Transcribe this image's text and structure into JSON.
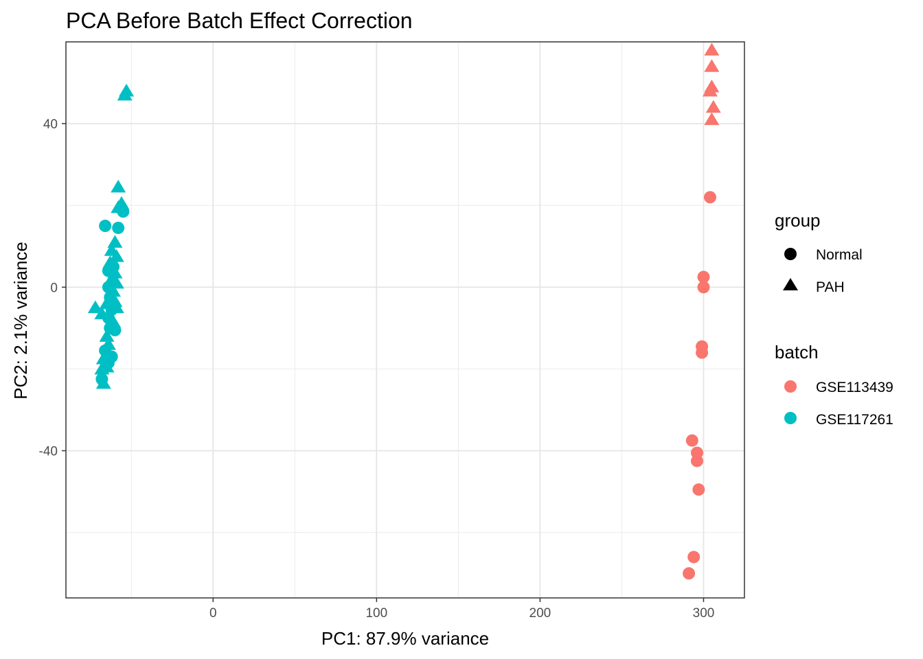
{
  "chart_data": {
    "type": "scatter",
    "title": "PCA Before Batch Effect Correction",
    "xlabel": "PC1: 87.9% variance",
    "ylabel": "PC2: 2.1% variance",
    "xlim": [
      -90,
      325
    ],
    "ylim": [
      -76,
      60
    ],
    "x_ticks": [
      0,
      100,
      200,
      300
    ],
    "y_ticks": [
      -40,
      0,
      40
    ],
    "x_tick_labels": [
      "0",
      "100",
      "200",
      "300"
    ],
    "y_tick_labels": [
      "-40",
      "0",
      "40"
    ],
    "grid": true,
    "legend_position": "right",
    "legends": [
      {
        "title": "group",
        "entries": [
          {
            "label": "Normal",
            "shape": "circle"
          },
          {
            "label": "PAH",
            "shape": "triangle"
          }
        ]
      },
      {
        "title": "batch",
        "entries": [
          {
            "label": "GSE113439",
            "color": "#F8766D"
          },
          {
            "label": "GSE117261",
            "color": "#00BFC4"
          }
        ]
      }
    ],
    "series": [
      {
        "name": "GSE113439",
        "color": "#F8766D",
        "points": [
          {
            "x": 305,
            "y": 58,
            "group": "PAH"
          },
          {
            "x": 305,
            "y": 54,
            "group": "PAH"
          },
          {
            "x": 305,
            "y": 49,
            "group": "PAH"
          },
          {
            "x": 304,
            "y": 48,
            "group": "PAH"
          },
          {
            "x": 306,
            "y": 44,
            "group": "PAH"
          },
          {
            "x": 305,
            "y": 41,
            "group": "PAH"
          },
          {
            "x": 304,
            "y": 22,
            "group": "Normal"
          },
          {
            "x": 300,
            "y": 2.5,
            "group": "Normal"
          },
          {
            "x": 300,
            "y": 0,
            "group": "Normal"
          },
          {
            "x": 299,
            "y": -14.5,
            "group": "Normal"
          },
          {
            "x": 299,
            "y": -16,
            "group": "Normal"
          },
          {
            "x": 293,
            "y": -37.5,
            "group": "Normal"
          },
          {
            "x": 296,
            "y": -40.5,
            "group": "Normal"
          },
          {
            "x": 296,
            "y": -42.5,
            "group": "Normal"
          },
          {
            "x": 297,
            "y": -49.5,
            "group": "Normal"
          },
          {
            "x": 294,
            "y": -66,
            "group": "Normal"
          },
          {
            "x": 291,
            "y": -70,
            "group": "Normal"
          }
        ]
      },
      {
        "name": "GSE117261",
        "color": "#00BFC4",
        "points": [
          {
            "x": -53,
            "y": 48,
            "group": "PAH"
          },
          {
            "x": -54,
            "y": 47,
            "group": "PAH"
          },
          {
            "x": -58,
            "y": 24.5,
            "group": "PAH"
          },
          {
            "x": -56,
            "y": 20.5,
            "group": "PAH"
          },
          {
            "x": -58,
            "y": 19.5,
            "group": "PAH"
          },
          {
            "x": -55,
            "y": 18.5,
            "group": "Normal"
          },
          {
            "x": -66,
            "y": 15,
            "group": "Normal"
          },
          {
            "x": -58,
            "y": 14.5,
            "group": "Normal"
          },
          {
            "x": -60,
            "y": 11,
            "group": "PAH"
          },
          {
            "x": -62,
            "y": 9,
            "group": "PAH"
          },
          {
            "x": -59,
            "y": 7.5,
            "group": "PAH"
          },
          {
            "x": -63,
            "y": 6,
            "group": "PAH"
          },
          {
            "x": -61,
            "y": 5,
            "group": "Normal"
          },
          {
            "x": -64,
            "y": 4,
            "group": "Normal"
          },
          {
            "x": -60,
            "y": 3.5,
            "group": "PAH"
          },
          {
            "x": -62,
            "y": 2,
            "group": "PAH"
          },
          {
            "x": -59,
            "y": 1,
            "group": "PAH"
          },
          {
            "x": -64,
            "y": 0,
            "group": "Normal"
          },
          {
            "x": -61,
            "y": -1,
            "group": "PAH"
          },
          {
            "x": -63,
            "y": -2.5,
            "group": "Normal"
          },
          {
            "x": -60,
            "y": -3.5,
            "group": "PAH"
          },
          {
            "x": -65,
            "y": -4,
            "group": "PAH"
          },
          {
            "x": -72,
            "y": -5,
            "group": "PAH"
          },
          {
            "x": -62,
            "y": -5.5,
            "group": "Normal"
          },
          {
            "x": -59,
            "y": -5,
            "group": "PAH"
          },
          {
            "x": -68,
            "y": -6.5,
            "group": "PAH"
          },
          {
            "x": -64,
            "y": -7.5,
            "group": "Normal"
          },
          {
            "x": -61,
            "y": -8.5,
            "group": "PAH"
          },
          {
            "x": -63,
            "y": -10,
            "group": "Normal"
          },
          {
            "x": -60,
            "y": -10.5,
            "group": "Normal"
          },
          {
            "x": -65,
            "y": -12,
            "group": "PAH"
          },
          {
            "x": -64,
            "y": -14,
            "group": "PAH"
          },
          {
            "x": -66,
            "y": -15.5,
            "group": "Normal"
          },
          {
            "x": -62,
            "y": -17,
            "group": "Normal"
          },
          {
            "x": -67,
            "y": -17.5,
            "group": "PAH"
          },
          {
            "x": -64,
            "y": -18.5,
            "group": "Normal"
          },
          {
            "x": -65,
            "y": -19.5,
            "group": "PAH"
          },
          {
            "x": -68,
            "y": -20,
            "group": "PAH"
          },
          {
            "x": -68,
            "y": -22.5,
            "group": "Normal"
          },
          {
            "x": -67,
            "y": -23.5,
            "group": "PAH"
          }
        ]
      }
    ]
  }
}
